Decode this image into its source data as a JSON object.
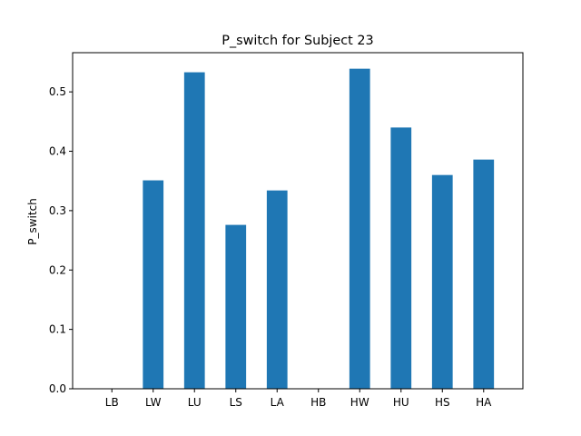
{
  "chart_data": {
    "type": "bar",
    "title": "P_switch for Subject 23",
    "xlabel": "",
    "ylabel": "P_switch",
    "categories": [
      "LB",
      "LW",
      "LU",
      "LS",
      "LA",
      "HB",
      "HW",
      "HU",
      "HS",
      "HA"
    ],
    "values": [
      0,
      0.351,
      0.533,
      0.276,
      0.334,
      0,
      0.539,
      0.44,
      0.36,
      0.386
    ],
    "ylim": [
      0,
      0.566
    ],
    "yticks": [
      0.0,
      0.1,
      0.2,
      0.3,
      0.4,
      0.5
    ],
    "ytick_labels": [
      "0.0",
      "0.1",
      "0.2",
      "0.3",
      "0.4",
      "0.5"
    ],
    "grid": false,
    "legend": "none",
    "colors": {
      "bar": "#1f77b4",
      "axis": "#000000",
      "background": "#ffffff"
    }
  }
}
